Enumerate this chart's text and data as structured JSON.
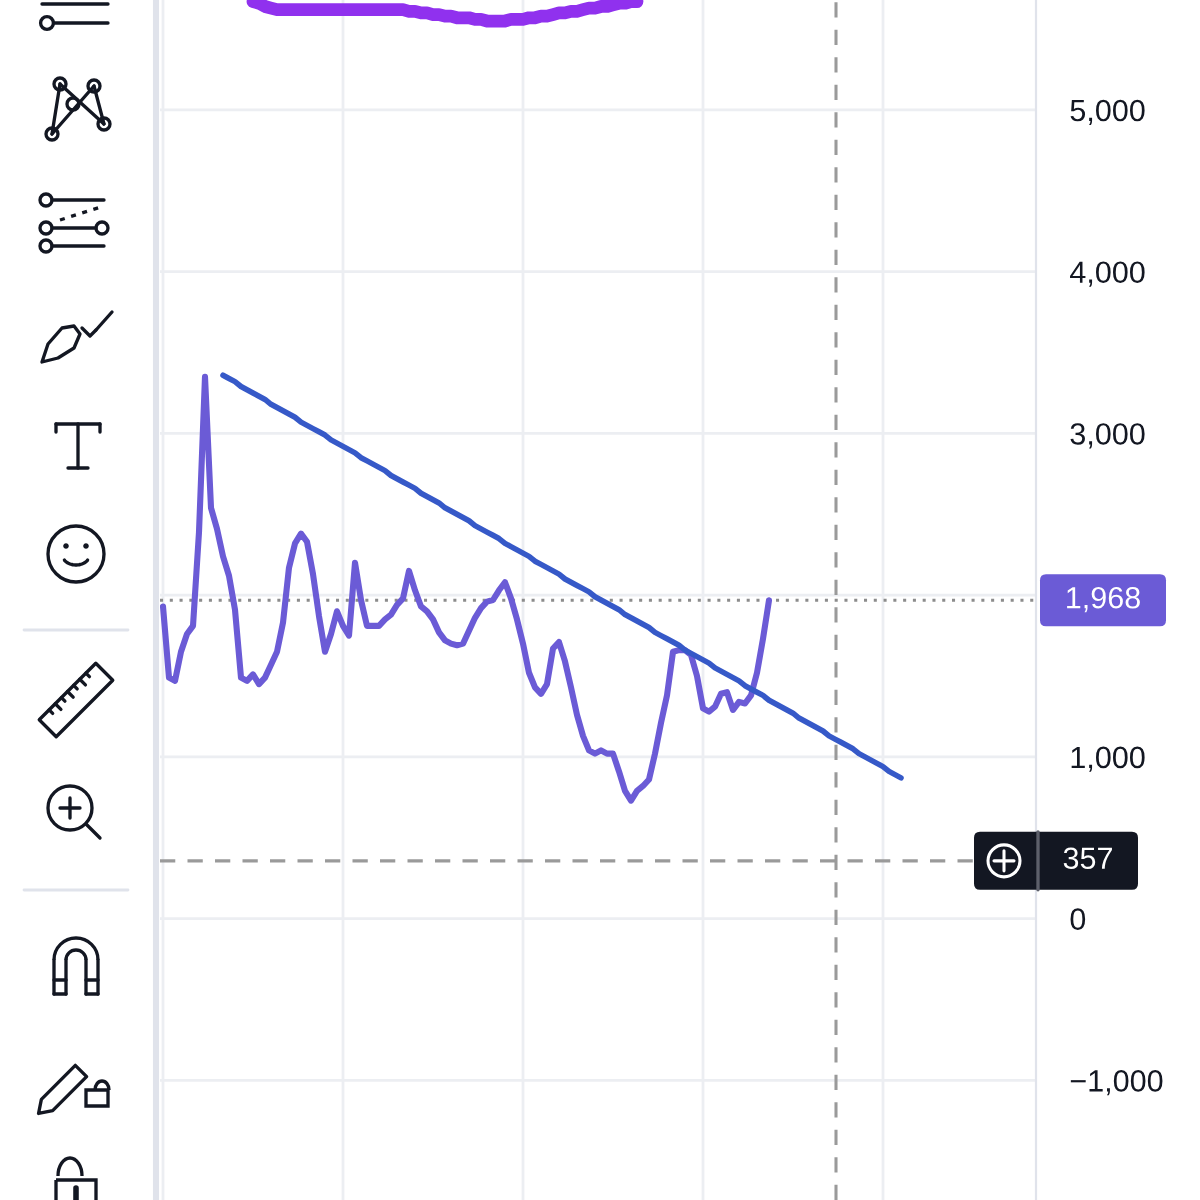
{
  "chart_data": {
    "type": "line",
    "categories": [
      null,
      null,
      null,
      null,
      null,
      null,
      null,
      null,
      null,
      null,
      null,
      null,
      null,
      null,
      null,
      null,
      null,
      null,
      null,
      null,
      null,
      null,
      null,
      null,
      null,
      null,
      null,
      null,
      null,
      null,
      null,
      null,
      null,
      null,
      null,
      null,
      null,
      null,
      null,
      null,
      null,
      null,
      null,
      null,
      null,
      null,
      null,
      null,
      null,
      null,
      null,
      null,
      null,
      null,
      null,
      null,
      null,
      null,
      null,
      null,
      null,
      null,
      null,
      null,
      null,
      null,
      null,
      null,
      null,
      null,
      null,
      null,
      null,
      null,
      null,
      null,
      null,
      null,
      null,
      null,
      null,
      null,
      null,
      null,
      null,
      null,
      null,
      null,
      null,
      null,
      null,
      null,
      null,
      null,
      null,
      null,
      null,
      null,
      null,
      null,
      null,
      null,
      null,
      null,
      null,
      null,
      null,
      null,
      null,
      null,
      null,
      null,
      null,
      null,
      null,
      null,
      null,
      null,
      null,
      null,
      null,
      null,
      null,
      null,
      null,
      null,
      null,
      null,
      null,
      null,
      null,
      null,
      null,
      null,
      null,
      null,
      null,
      null,
      null,
      null,
      null,
      null,
      null,
      null,
      null,
      null
    ],
    "series": [
      {
        "color": "#6b5bd6",
        "values": [
          1930,
          1490,
          1470,
          1650,
          1760,
          1810,
          2390,
          3350,
          2540,
          2410,
          2240,
          2120,
          1910,
          1490,
          1470,
          1510,
          1450,
          1490,
          1570,
          1650,
          1830,
          2170,
          2320,
          2380,
          2330,
          2130,
          1870,
          1650,
          1760,
          1900,
          1810,
          1750,
          2200,
          1970,
          1810,
          1810,
          1810,
          1850,
          1880,
          1940,
          1980,
          2150,
          2030,
          1930,
          1900,
          1850,
          1770,
          1720,
          1700,
          1690,
          1700,
          1780,
          1860,
          1920,
          1960,
          1970,
          2030,
          2080,
          1980,
          1850,
          1700,
          1520,
          1430,
          1390,
          1450,
          1670,
          1710,
          1590,
          1430,
          1260,
          1130,
          1040,
          1020,
          1040,
          1020,
          1020,
          910,
          790,
          730,
          790,
          820,
          860,
          1020,
          1210,
          1380,
          1650,
          1660,
          1660,
          1630,
          1500,
          1300,
          1280,
          1310,
          1390,
          1400,
          1290,
          1340,
          1330,
          1380,
          1520,
          1730,
          1968,
          null,
          null,
          null,
          null,
          null,
          null,
          null,
          null,
          null,
          null,
          null,
          null,
          null,
          null,
          null,
          null,
          null,
          null,
          null,
          null,
          null,
          null,
          null,
          null,
          null,
          null,
          null,
          null,
          null,
          null,
          null,
          null,
          null,
          null,
          null,
          null,
          null,
          null,
          null,
          null,
          null,
          null,
          null,
          null
        ]
      },
      {
        "type": "line",
        "color": "#3659c8",
        "values": [
          null,
          null,
          null,
          null,
          null,
          null,
          null,
          null,
          null,
          null,
          3360,
          3340,
          3320,
          3290,
          3270,
          3250,
          3230,
          3210,
          3180,
          3160,
          3140,
          3120,
          3100,
          3070,
          3050,
          3030,
          3010,
          2990,
          2960,
          2940,
          2920,
          2900,
          2880,
          2850,
          2830,
          2810,
          2790,
          2770,
          2740,
          2720,
          2700,
          2680,
          2660,
          2630,
          2610,
          2590,
          2570,
          2540,
          2520,
          2500,
          2480,
          2460,
          2430,
          2410,
          2390,
          2370,
          2350,
          2320,
          2300,
          2280,
          2260,
          2240,
          2210,
          2190,
          2170,
          2150,
          2130,
          2100,
          2080,
          2060,
          2040,
          2020,
          1990,
          1970,
          1950,
          1930,
          1910,
          1880,
          1860,
          1840,
          1820,
          1800,
          1770,
          1750,
          1730,
          1710,
          1690,
          1660,
          1640,
          1620,
          1600,
          1580,
          1550,
          1530,
          1510,
          1490,
          1470,
          1440,
          1420,
          1400,
          1380,
          1350,
          1330,
          1310,
          1290,
          1270,
          1240,
          1220,
          1200,
          1180,
          1160,
          1130,
          1110,
          1090,
          1070,
          1050,
          1020,
          1000,
          980,
          960,
          940,
          910,
          890,
          870,
          null,
          null,
          null,
          null,
          null,
          null,
          null,
          null,
          null,
          null,
          null,
          null,
          null,
          null,
          null,
          null,
          null,
          null,
          null,
          null,
          null,
          null
        ]
      },
      {
        "type": "line",
        "color": "#9031ee",
        "values": [
          null,
          null,
          null,
          null,
          null,
          null,
          null,
          null,
          null,
          null,
          null,
          null,
          null,
          null,
          null,
          5670,
          5660,
          5640,
          5630,
          5620,
          5620,
          5620,
          5620,
          5620,
          5620,
          5620,
          5620,
          5620,
          5620,
          5620,
          5620,
          5620,
          5620,
          5620,
          5620,
          5620,
          5620,
          5620,
          5620,
          5620,
          5620,
          5610,
          5610,
          5600,
          5600,
          5590,
          5590,
          5580,
          5580,
          5570,
          5570,
          5570,
          5560,
          5560,
          5550,
          5550,
          5550,
          5550,
          5560,
          5560,
          5560,
          5570,
          5570,
          5580,
          5580,
          5590,
          5600,
          5600,
          5610,
          5610,
          5620,
          5630,
          5630,
          5640,
          5640,
          5650,
          5660,
          5660,
          5670,
          5670,
          null,
          null,
          null,
          null,
          null,
          null,
          null,
          null,
          null,
          null,
          null,
          null,
          null,
          null,
          null,
          null,
          null,
          null,
          null,
          null,
          null,
          null,
          null,
          null,
          null,
          null,
          null,
          null,
          null,
          null,
          null,
          null,
          null,
          null,
          null,
          null,
          null,
          null,
          null,
          null,
          null,
          null,
          null,
          null,
          null,
          null,
          null,
          null,
          null,
          null,
          null,
          null,
          null,
          null,
          null,
          null,
          null,
          null,
          null,
          null,
          null,
          null,
          null,
          null,
          null,
          null
        ]
      }
    ],
    "ylim": [
      -1740,
      5680
    ],
    "yticks": [
      {
        "value": -1000,
        "label": "−1,000"
      },
      {
        "value": 0,
        "label": "0"
      },
      {
        "value": 1000,
        "label": "1,000"
      },
      {
        "value": 2000,
        "label": null
      },
      {
        "value": 3000,
        "label": "3,000"
      },
      {
        "value": 4000,
        "label": "4,000"
      },
      {
        "value": 5000,
        "label": "5,000"
      }
    ],
    "grid": true,
    "tick_labels": "y",
    "ref_lines": [
      {
        "axis": "y",
        "value": 1968,
        "label": "1,968",
        "color": "#8c8c8c",
        "line_style": "dotted"
      },
      {
        "axis": "y",
        "value": 357,
        "label": "357",
        "color": "#9a9a9a",
        "line_style": "dashed"
      }
    ]
  }
}
